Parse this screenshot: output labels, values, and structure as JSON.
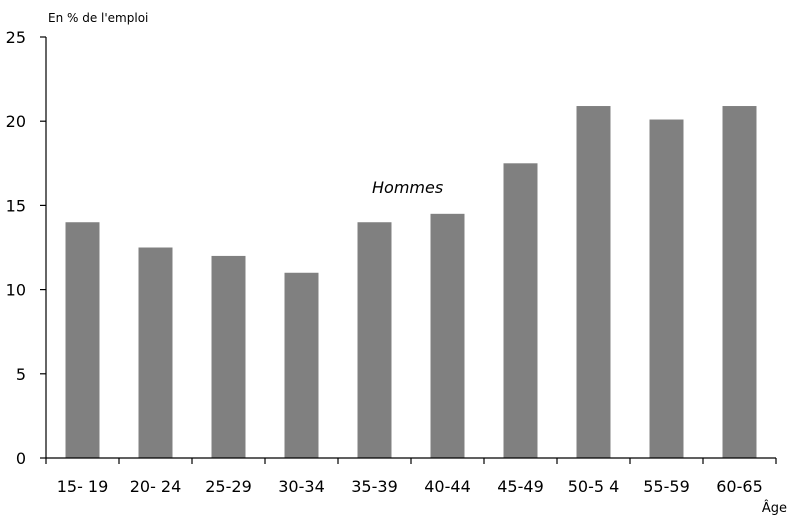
{
  "chart_data": {
    "type": "bar",
    "ylabel": "En % de l'emploi",
    "xlabel": "Âge",
    "annotation": "Hommes",
    "categories": [
      "15- 19",
      "20- 24",
      "25-29",
      "30-34",
      "35-39",
      "40-44",
      "45-49",
      "50-5 4",
      "55-59",
      "60-65"
    ],
    "values": [
      14.0,
      12.5,
      12.0,
      11.0,
      14.0,
      14.5,
      17.5,
      20.9,
      20.1,
      20.9
    ],
    "ylim": [
      0,
      25
    ],
    "yticks": [
      0,
      5,
      10,
      15,
      20,
      25
    ],
    "ytick_labels": [
      "0",
      "5",
      "10",
      "15",
      "20",
      "25"
    ],
    "bar_color": "#808080",
    "grid": false
  }
}
